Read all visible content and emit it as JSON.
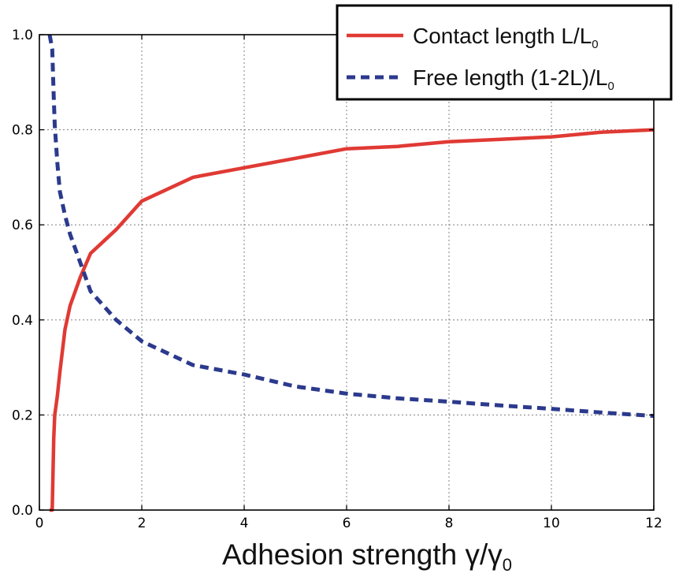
{
  "chart_data": {
    "type": "line",
    "xlabel": "Adhesion strength γ/γ",
    "xlabel_subscript": "0",
    "ylabel": "",
    "xlim": [
      0,
      12
    ],
    "ylim": [
      0.0,
      1.0
    ],
    "xticks": [
      "0",
      "2",
      "4",
      "6",
      "8",
      "10",
      "12"
    ],
    "yticks": [
      "0.0",
      "0.2",
      "0.4",
      "0.6",
      "0.8",
      "1.0"
    ],
    "grid": true,
    "legend_position": "top-right",
    "series": [
      {
        "name": "Contact length L/L",
        "name_subscript": "0",
        "color": "#e03a34",
        "style": "solid",
        "x": [
          0.2,
          0.25,
          0.28,
          0.3,
          0.35,
          0.4,
          0.5,
          0.6,
          0.8,
          1.0,
          1.5,
          2,
          3,
          4,
          5,
          6,
          7,
          8,
          9,
          10,
          11,
          12
        ],
        "y": [
          0.0,
          0.0,
          0.15,
          0.2,
          0.24,
          0.29,
          0.38,
          0.43,
          0.49,
          0.54,
          0.59,
          0.65,
          0.7,
          0.72,
          0.74,
          0.76,
          0.765,
          0.775,
          0.78,
          0.785,
          0.795,
          0.8
        ]
      },
      {
        "name": "Free length (1-2L)/L",
        "name_subscript": "0",
        "color": "#2b3a8c",
        "style": "dashed",
        "x": [
          0.2,
          0.25,
          0.28,
          0.3,
          0.35,
          0.4,
          0.5,
          0.6,
          0.8,
          1.0,
          1.5,
          2,
          3,
          4,
          5,
          6,
          7,
          8,
          9,
          10,
          11,
          12
        ],
        "y": [
          1.0,
          0.97,
          0.87,
          0.81,
          0.73,
          0.67,
          0.62,
          0.58,
          0.52,
          0.46,
          0.4,
          0.355,
          0.305,
          0.285,
          0.26,
          0.245,
          0.235,
          0.228,
          0.22,
          0.213,
          0.205,
          0.198
        ]
      }
    ]
  }
}
